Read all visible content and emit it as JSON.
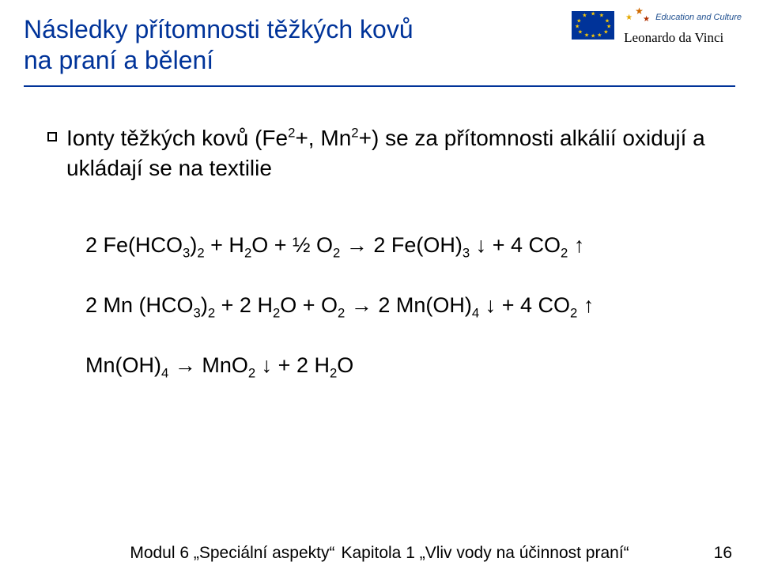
{
  "header": {
    "title_line1": "Následky přítomnosti těžkých kovů",
    "title_line2": "na praní a bělení",
    "logo": {
      "edu_text": "Education and Culture",
      "program_name": "Leonardo da Vinci"
    }
  },
  "content": {
    "bullet_html": "Ionty těžkých kovů (Fe<sup>2</sup>+, Mn<sup>2</sup>+) se za přítomnosti alkálií oxidují a ukládají se na textilie",
    "equations": [
      "2 Fe(HCO<sub>3</sub>)<sub>2</sub>  + H<sub>2</sub>O  + ½ O<sub>2</sub> <span class='arr'>→</span> 2 Fe(OH)<sub>3</sub> <span class='arr'>↓</span>  + 4 CO<sub>2</sub> <span class='arr'>↑</span>",
      "2 Mn (HCO<sub>3</sub>)<sub>2</sub> +  2 H<sub>2</sub>O + O<sub>2</sub> <span class='arr'>→</span> 2 Mn(OH)<sub>4</sub> <span class='arr'>↓</span>  + 4 CO<sub>2</sub> <span class='arr'>↑</span>",
      "Mn(OH)<sub>4</sub> <span class='arr'>→</span> MnO<sub>2</sub> <span class='arr'>↓</span> + 2 H<sub>2</sub>O"
    ]
  },
  "footer": {
    "module": "Modul 6 „Speciální aspekty“",
    "chapter": "Kapitola 1 „Vliv vody na účinnost praní“",
    "page": "16"
  },
  "colors": {
    "title": "#003399",
    "rule": "#003399",
    "eu_flag_bg": "#003399",
    "eu_star": "#ffcc00",
    "text": "#000000",
    "background": "#ffffff"
  }
}
